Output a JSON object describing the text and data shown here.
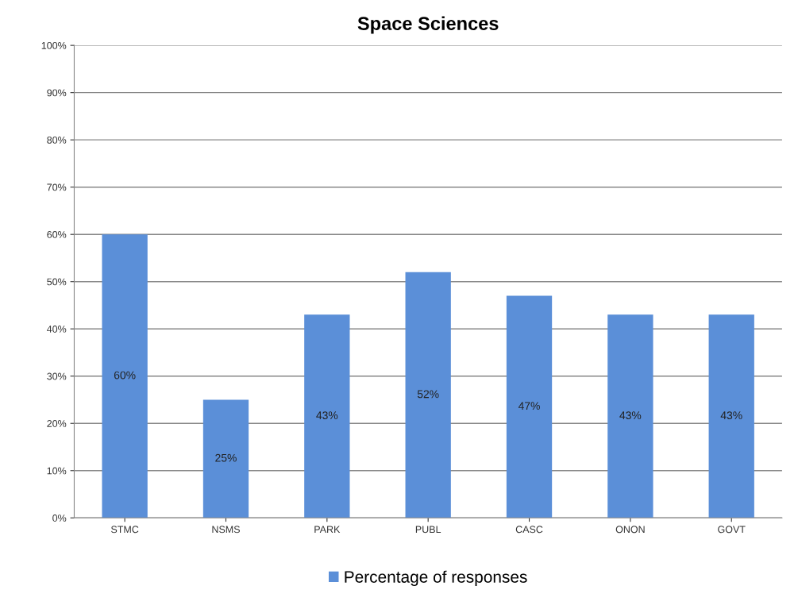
{
  "chart_data": {
    "type": "bar",
    "title": "Space Sciences",
    "categories": [
      "STMC",
      "NSMS",
      "PARK",
      "PUBL",
      "CASC",
      "ONON",
      "GOVT"
    ],
    "series": [
      {
        "name": "Percentage of responses",
        "color": "#5b8fd8",
        "values": [
          60,
          25,
          43,
          52,
          47,
          43,
          43
        ],
        "value_labels": [
          "60%",
          "25%",
          "43%",
          "52%",
          "47%",
          "43%",
          "43%"
        ]
      }
    ],
    "ylim": [
      0,
      100
    ],
    "yticks": [
      {
        "value": 0,
        "label": "0%"
      },
      {
        "value": 10,
        "label": "10%"
      },
      {
        "value": 20,
        "label": "20%"
      },
      {
        "value": 30,
        "label": "30%"
      },
      {
        "value": 40,
        "label": "40%"
      },
      {
        "value": 50,
        "label": "50%"
      },
      {
        "value": 60,
        "label": "60%"
      },
      {
        "value": 70,
        "label": "70%"
      },
      {
        "value": 80,
        "label": "80%"
      },
      {
        "value": 90,
        "label": "90%"
      },
      {
        "value": 100,
        "label": "100%"
      }
    ],
    "grid": "y",
    "legend": "bottom"
  }
}
